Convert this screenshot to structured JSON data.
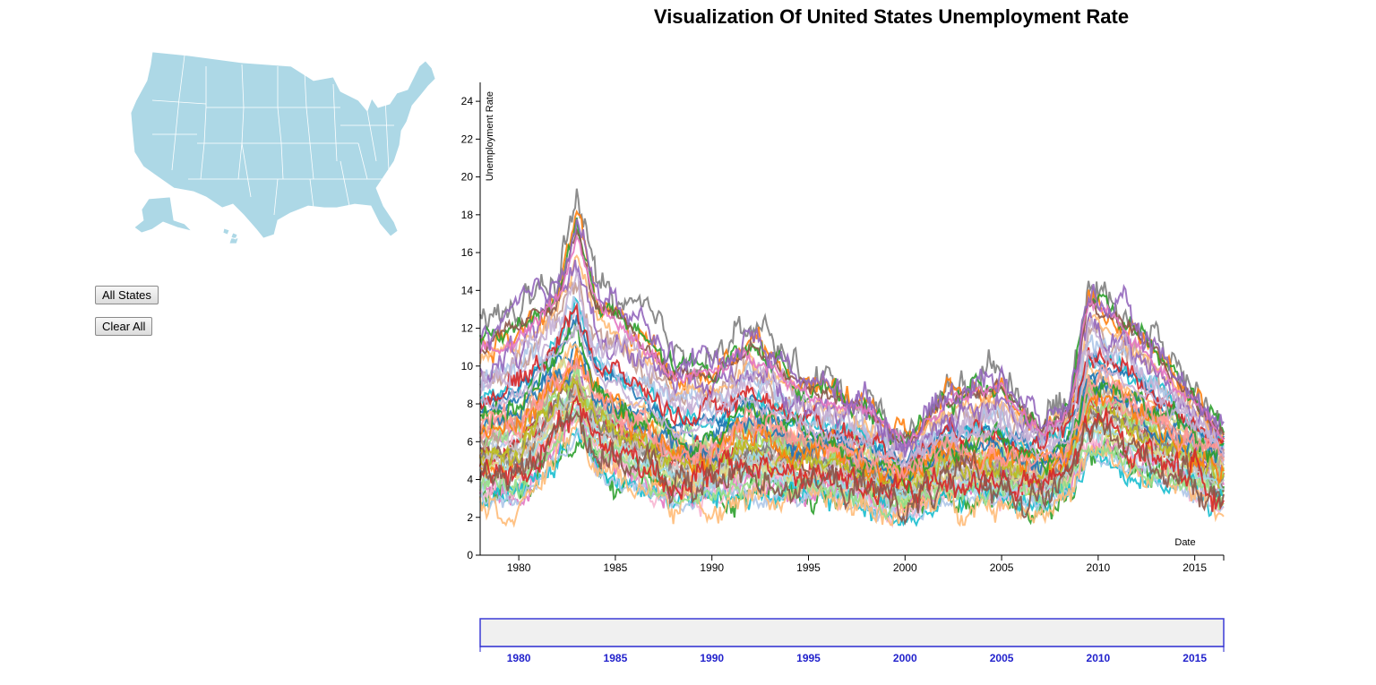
{
  "page": {
    "title": "Visualization Of United States Unemployment Rate"
  },
  "map": {
    "fill": "#add8e6",
    "stroke": "#ffffff"
  },
  "buttons": {
    "all_states": "All States",
    "clear_all": "Clear All"
  },
  "colors": {
    "brush_stroke": "#3a3ad6",
    "brush_fill": "#f0f0f0",
    "brush_tick": "#2222cc"
  },
  "chart_data": {
    "type": "line",
    "ylabel": "Unemployment Rate",
    "xlabel": "Date",
    "xlim": [
      1978.0,
      2016.5
    ],
    "ylim": [
      0,
      25
    ],
    "yticks": [
      0,
      2,
      4,
      6,
      8,
      10,
      12,
      14,
      16,
      18,
      20,
      22,
      24
    ],
    "xticks": [
      1980,
      1985,
      1990,
      1995,
      2000,
      2005,
      2010,
      2015
    ],
    "grid": false,
    "series_count": 51,
    "envelope": {
      "x": [
        1978,
        1980,
        1982,
        1983,
        1984,
        1986,
        1988,
        1990,
        1992,
        1995,
        1998,
        2000,
        2002,
        2005,
        2007,
        2008.5,
        2009.5,
        2011,
        2013,
        2016.5
      ],
      "low": [
        2.6,
        2.3,
        5.0,
        6.5,
        4.5,
        3.5,
        2.8,
        2.7,
        3.0,
        2.8,
        2.5,
        2.0,
        2.8,
        2.8,
        2.5,
        3.0,
        5.0,
        4.5,
        3.8,
        2.5
      ],
      "high": [
        13.0,
        14.0,
        15.5,
        20.5,
        15.5,
        13.6,
        11.5,
        11.5,
        12.8,
        10.0,
        9.0,
        6.5,
        9.0,
        10.9,
        7.5,
        8.5,
        15.4,
        13.9,
        12.0,
        7.0
      ],
      "typical": [
        6.5,
        7.0,
        9.5,
        10.0,
        8.0,
        7.0,
        5.8,
        5.5,
        7.0,
        5.8,
        5.0,
        4.2,
        5.6,
        5.2,
        4.6,
        5.5,
        9.0,
        8.5,
        7.0,
        5.2
      ]
    },
    "palette": [
      "#1f77b4",
      "#aec7e8",
      "#ff7f0e",
      "#ffbb78",
      "#2ca02c",
      "#98df8a",
      "#d62728",
      "#ff9896",
      "#9467bd",
      "#c5b0d5",
      "#8c564b",
      "#c49c94",
      "#e377c2",
      "#f7b6d2",
      "#7f7f7f",
      "#c7c7c7",
      "#bcbd22",
      "#dbdb8d",
      "#17becf",
      "#9edae5"
    ]
  },
  "brush_axis": {
    "xticks": [
      1980,
      1985,
      1990,
      1995,
      2000,
      2005,
      2010,
      2015
    ]
  }
}
